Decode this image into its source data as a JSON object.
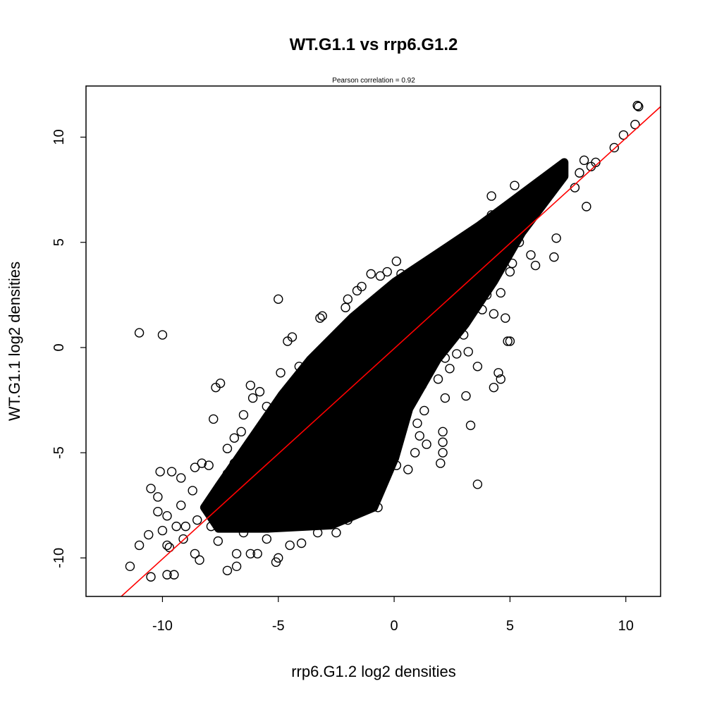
{
  "chart_data": {
    "type": "scatter",
    "title": "WT.G1.1 vs rrp6.G1.2",
    "subtitle": "Pearson correlation =  0.92",
    "xlabel": "rrp6.G1.2 log2 densities",
    "ylabel": "WT.G1.1 log2 densities",
    "xlim": [
      -13.3,
      11.5
    ],
    "ylim": [
      -11.83,
      12.43
    ],
    "xticks": [
      -10,
      -5,
      0,
      5,
      10
    ],
    "yticks": [
      -10,
      -5,
      0,
      5,
      10
    ],
    "grid": false,
    "colors": {
      "points": "#000000",
      "fit_line": "#ff0000"
    },
    "fit_line": {
      "slope": 1.0,
      "intercept": -0.05
    },
    "dense_region": [
      [
        -7.58,
        -6.6
      ],
      [
        -4.84,
        -2.24
      ],
      [
        -3.62,
        -0.57
      ],
      [
        -1.8,
        1.44
      ],
      [
        0.03,
        3.12
      ],
      [
        1.86,
        4.46
      ],
      [
        3.68,
        5.8
      ],
      [
        4.9,
        6.8
      ],
      [
        6.12,
        7.8
      ],
      [
        7.34,
        8.8
      ],
      [
        7.34,
        8.14
      ],
      [
        5.51,
        5.46
      ],
      [
        4.29,
        3.12
      ],
      [
        3.07,
        1.1
      ],
      [
        1.86,
        -0.57
      ],
      [
        0.64,
        -2.91
      ],
      [
        0.03,
        -5.26
      ],
      [
        -0.88,
        -7.6
      ],
      [
        -2.71,
        -8.44
      ],
      [
        -5.45,
        -8.6
      ],
      [
        -7.58,
        -8.6
      ],
      [
        -8.19,
        -7.6
      ]
    ],
    "points": [
      [
        10.5,
        11.5
      ],
      [
        10.55,
        11.45
      ],
      [
        10.4,
        10.6
      ],
      [
        9.9,
        10.1
      ],
      [
        9.5,
        9.5
      ],
      [
        8.7,
        8.8
      ],
      [
        8.5,
        8.6
      ],
      [
        8.2,
        8.9
      ],
      [
        8.0,
        8.3
      ],
      [
        7.8,
        7.6
      ],
      [
        8.3,
        6.7
      ],
      [
        7.0,
        5.2
      ],
      [
        6.9,
        4.3
      ],
      [
        6.1,
        3.9
      ],
      [
        5.9,
        4.4
      ],
      [
        5.0,
        3.6
      ],
      [
        4.4,
        3.4
      ],
      [
        4.8,
        1.4
      ],
      [
        4.9,
        0.3
      ],
      [
        5.0,
        0.3
      ],
      [
        4.5,
        -1.2
      ],
      [
        4.6,
        -1.5
      ],
      [
        4.3,
        -1.9
      ],
      [
        3.6,
        -0.9
      ],
      [
        3.1,
        -2.3
      ],
      [
        3.3,
        -3.7
      ],
      [
        3.6,
        -6.5
      ],
      [
        2.1,
        -4.0
      ],
      [
        2.1,
        -4.5
      ],
      [
        2.1,
        -5.0
      ],
      [
        2.0,
        -5.5
      ],
      [
        1.4,
        -4.6
      ],
      [
        5.2,
        7.7
      ],
      [
        4.2,
        7.2
      ],
      [
        4.5,
        6.2
      ],
      [
        4.2,
        6.3
      ],
      [
        3.9,
        5.7
      ],
      [
        5.4,
        5.0
      ],
      [
        4.6,
        2.6
      ],
      [
        5.1,
        4.0
      ],
      [
        4.0,
        2.5
      ],
      [
        4.3,
        1.6
      ],
      [
        3.3,
        1.7
      ],
      [
        3.8,
        1.8
      ],
      [
        3.9,
        3.0
      ],
      [
        3.0,
        0.6
      ],
      [
        3.2,
        -0.2
      ],
      [
        2.7,
        -0.3
      ],
      [
        2.2,
        -0.5
      ],
      [
        2.4,
        -1.0
      ],
      [
        1.9,
        -1.5
      ],
      [
        1.2,
        -1.8
      ],
      [
        2.2,
        -2.4
      ],
      [
        1.3,
        -3.0
      ],
      [
        1.0,
        -3.6
      ],
      [
        1.1,
        -4.2
      ],
      [
        0.9,
        -5.0
      ],
      [
        0.6,
        -5.8
      ],
      [
        0.1,
        -5.6
      ],
      [
        -0.5,
        -6.3
      ],
      [
        -0.7,
        -7.6
      ],
      [
        -11.0,
        0.7
      ],
      [
        -10.0,
        0.6
      ],
      [
        -5.0,
        2.3
      ],
      [
        -4.4,
        0.5
      ],
      [
        -4.6,
        0.3
      ],
      [
        -3.2,
        1.4
      ],
      [
        -3.1,
        1.5
      ],
      [
        -2.1,
        1.9
      ],
      [
        -2.0,
        2.3
      ],
      [
        -1.6,
        2.7
      ],
      [
        -1.4,
        2.9
      ],
      [
        -1.0,
        3.5
      ],
      [
        -0.6,
        3.4
      ],
      [
        -0.3,
        3.6
      ],
      [
        0.1,
        4.1
      ],
      [
        0.3,
        3.5
      ],
      [
        1.2,
        3.7
      ],
      [
        1.5,
        3.7
      ],
      [
        2.2,
        4.1
      ],
      [
        2.4,
        4.6
      ],
      [
        2.8,
        4.4
      ],
      [
        3.1,
        4.7
      ],
      [
        3.7,
        4.7
      ],
      [
        4.0,
        5.3
      ],
      [
        -7.7,
        -1.9
      ],
      [
        -7.5,
        -1.7
      ],
      [
        -6.2,
        -1.8
      ],
      [
        -5.8,
        -2.1
      ],
      [
        -6.1,
        -2.4
      ],
      [
        -7.8,
        -3.4
      ],
      [
        -6.5,
        -3.2
      ],
      [
        -5.5,
        -2.8
      ],
      [
        -6.9,
        -4.3
      ],
      [
        -7.2,
        -4.8
      ],
      [
        -6.6,
        -4.0
      ],
      [
        -8.3,
        -5.5
      ],
      [
        -8.0,
        -5.6
      ],
      [
        -8.6,
        -5.7
      ],
      [
        -9.6,
        -5.9
      ],
      [
        -10.1,
        -5.9
      ],
      [
        -10.5,
        -6.7
      ],
      [
        -9.2,
        -6.2
      ],
      [
        -10.2,
        -7.1
      ],
      [
        -9.2,
        -7.5
      ],
      [
        -8.7,
        -6.8
      ],
      [
        -10.2,
        -7.8
      ],
      [
        -9.8,
        -8.0
      ],
      [
        -9.4,
        -8.5
      ],
      [
        -10.0,
        -8.7
      ],
      [
        -10.6,
        -8.9
      ],
      [
        -11.0,
        -9.4
      ],
      [
        -9.8,
        -9.4
      ],
      [
        -9.7,
        -9.5
      ],
      [
        -9.1,
        -9.1
      ],
      [
        -11.4,
        -10.4
      ],
      [
        -10.5,
        -10.9
      ],
      [
        -9.8,
        -10.8
      ],
      [
        -9.5,
        -10.8
      ],
      [
        -8.6,
        -9.8
      ],
      [
        -8.4,
        -10.1
      ],
      [
        -7.6,
        -9.2
      ],
      [
        -7.2,
        -10.6
      ],
      [
        -6.8,
        -10.4
      ],
      [
        -6.8,
        -9.8
      ],
      [
        -6.2,
        -9.8
      ],
      [
        -5.9,
        -9.8
      ],
      [
        -5.0,
        -10.0
      ],
      [
        -5.1,
        -10.2
      ],
      [
        -4.5,
        -9.4
      ],
      [
        -4.0,
        -9.3
      ],
      [
        -3.3,
        -8.8
      ],
      [
        -2.5,
        -8.8
      ],
      [
        -2.0,
        -8.2
      ],
      [
        -1.2,
        -7.7
      ],
      [
        -5.5,
        -9.1
      ],
      [
        -6.5,
        -8.8
      ],
      [
        -7.9,
        -8.5
      ],
      [
        -8.5,
        -8.2
      ],
      [
        -9.0,
        -8.5
      ],
      [
        -8.0,
        -7.5
      ],
      [
        -7.2,
        -6.0
      ],
      [
        -6.9,
        -5.5
      ],
      [
        -4.9,
        -1.2
      ],
      [
        -4.1,
        -0.9
      ],
      [
        -3.4,
        -0.4
      ],
      [
        -2.6,
        0.4
      ],
      [
        -1.0,
        1.8
      ],
      [
        0.3,
        2.6
      ],
      [
        1.0,
        2.5
      ]
    ]
  }
}
